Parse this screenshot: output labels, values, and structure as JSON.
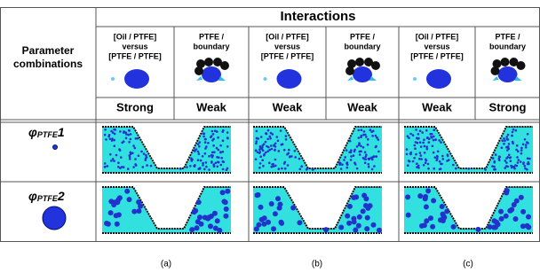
{
  "header": {
    "title": "Interactions",
    "row_header": [
      "Parameter",
      "combinations"
    ]
  },
  "columns": [
    {
      "label": [
        "[Oil / PTFE]",
        "versus",
        "[PTFE / PTFE]"
      ],
      "strength": "Strong"
    },
    {
      "label": [
        "PTFE /",
        "boundary"
      ],
      "strength": "Weak"
    },
    {
      "label": [
        "[Oil / PTFE]",
        "versus",
        "[PTFE / PTFE]"
      ],
      "strength": "Weak"
    },
    {
      "label": [
        "PTFE /",
        "boundary"
      ],
      "strength": "Weak"
    },
    {
      "label": [
        "[Oil / PTFE]",
        "versus",
        "[PTFE / PTFE]"
      ],
      "strength": "Weak"
    },
    {
      "label": [
        "PTFE /",
        "boundary"
      ],
      "strength": "Strong"
    }
  ],
  "rows": [
    {
      "symbol": "φ",
      "subscript": "PTFE",
      "index": "1"
    },
    {
      "symbol": "φ",
      "subscript": "PTFE",
      "index": "2"
    }
  ],
  "captions": [
    "(a)",
    "(b)",
    "(c)"
  ]
}
